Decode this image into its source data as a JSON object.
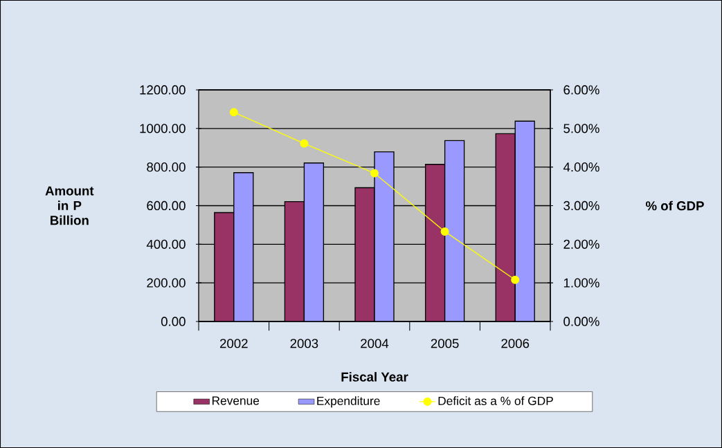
{
  "chart_data": {
    "type": "bar",
    "xlabel": "Fiscal Year",
    "ylabel": "Amount in P Billion",
    "y2label": "% of GDP",
    "categories": [
      "2002",
      "2003",
      "2004",
      "2005",
      "2006"
    ],
    "series": [
      {
        "name": "Revenue",
        "color": "#993366",
        "values": [
          564,
          621,
          693,
          814,
          973
        ]
      },
      {
        "name": "Expenditure",
        "color": "#9999ff",
        "values": [
          771,
          821,
          879,
          937,
          1038
        ]
      },
      {
        "name": "Deficit as a % of GDP",
        "color": "#ffff00",
        "type": "line",
        "axis": "y2",
        "marker": "circle",
        "values": [
          5.42,
          4.61,
          3.84,
          2.33,
          1.08
        ]
      }
    ],
    "ylim": [
      0,
      1200
    ],
    "yticks": [
      {
        "value": 0,
        "label": "0.00"
      },
      {
        "value": 200,
        "label": "200.00"
      },
      {
        "value": 400,
        "label": "400.00"
      },
      {
        "value": 600,
        "label": "600.00"
      },
      {
        "value": 800,
        "label": "800.00"
      },
      {
        "value": 1000,
        "label": "1000.00"
      },
      {
        "value": 1200,
        "label": "1200.00"
      }
    ],
    "y2lim": [
      0,
      6
    ],
    "y2ticks": [
      {
        "value": 0,
        "label": "0.00%"
      },
      {
        "value": 1,
        "label": "1.00%"
      },
      {
        "value": 2,
        "label": "2.00%"
      },
      {
        "value": 3,
        "label": "3.00%"
      },
      {
        "value": 4,
        "label": "4.00%"
      },
      {
        "value": 5,
        "label": "5.00%"
      },
      {
        "value": 6,
        "label": "6.00%"
      }
    ],
    "grid": "y",
    "legend": "bottom"
  }
}
